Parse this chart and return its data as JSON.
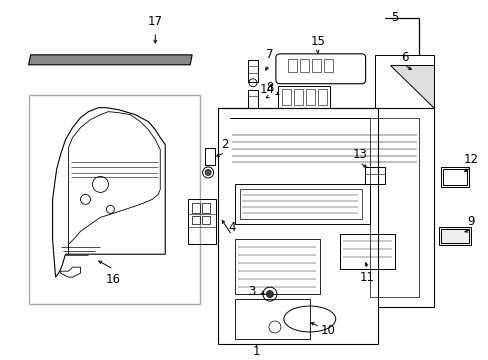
{
  "bg_color": "#ffffff",
  "lc": "#000000",
  "fig_width": 4.89,
  "fig_height": 3.6,
  "dpi": 100,
  "gray_box_color": "#cccccc",
  "light_gray": "#e8e8e8",
  "mid_gray": "#999999"
}
